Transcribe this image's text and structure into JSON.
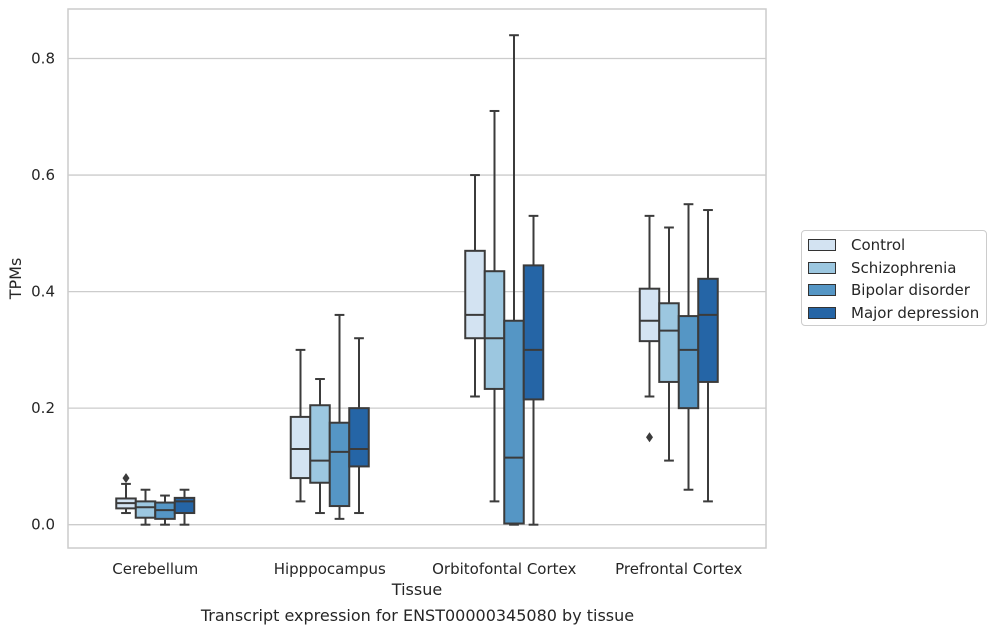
{
  "caption": "Transcript expression for ENST00000345080 by tissue",
  "chart_data": {
    "type": "box",
    "xlabel": "Tissue",
    "ylabel": "TPMs",
    "ylim": [
      -0.04,
      0.885
    ],
    "yticks": [
      0.0,
      0.2,
      0.4,
      0.6,
      0.8
    ],
    "ytick_labels": [
      "0.0",
      "0.2",
      "0.4",
      "0.6",
      "0.8"
    ],
    "grid": "horizontal",
    "legend_position": "right",
    "categories": [
      "Cerebellum",
      "Hipppocampus",
      "Orbitofontal Cortex",
      "Prefrontal Cortex"
    ],
    "series": [
      {
        "name": "Control",
        "color": "#d3e3f2",
        "boxes": [
          {
            "whislo": 0.02,
            "q1": 0.028,
            "med": 0.037,
            "q3": 0.045,
            "whishi": 0.07,
            "fliers": [
              0.08
            ]
          },
          {
            "whislo": 0.04,
            "q1": 0.08,
            "med": 0.13,
            "q3": 0.185,
            "whishi": 0.3,
            "fliers": []
          },
          {
            "whislo": 0.22,
            "q1": 0.32,
            "med": 0.36,
            "q3": 0.47,
            "whishi": 0.6,
            "fliers": []
          },
          {
            "whislo": 0.22,
            "q1": 0.315,
            "med": 0.35,
            "q3": 0.405,
            "whishi": 0.53,
            "fliers": [
              0.15
            ]
          }
        ]
      },
      {
        "name": "Schizophrenia",
        "color": "#9cc7e0",
        "boxes": [
          {
            "whislo": 0.0,
            "q1": 0.012,
            "med": 0.03,
            "q3": 0.04,
            "whishi": 0.06,
            "fliers": []
          },
          {
            "whislo": 0.02,
            "q1": 0.072,
            "med": 0.11,
            "q3": 0.205,
            "whishi": 0.25,
            "fliers": []
          },
          {
            "whislo": 0.04,
            "q1": 0.233,
            "med": 0.32,
            "q3": 0.435,
            "whishi": 0.71,
            "fliers": []
          },
          {
            "whislo": 0.11,
            "q1": 0.245,
            "med": 0.333,
            "q3": 0.38,
            "whishi": 0.51,
            "fliers": []
          }
        ]
      },
      {
        "name": "Bipolar disorder",
        "color": "#5596c5",
        "boxes": [
          {
            "whislo": 0.0,
            "q1": 0.01,
            "med": 0.025,
            "q3": 0.038,
            "whishi": 0.05,
            "fliers": []
          },
          {
            "whislo": 0.01,
            "q1": 0.032,
            "med": 0.125,
            "q3": 0.175,
            "whishi": 0.36,
            "fliers": []
          },
          {
            "whislo": 0.0,
            "q1": 0.002,
            "med": 0.115,
            "q3": 0.35,
            "whishi": 0.84,
            "fliers": []
          },
          {
            "whislo": 0.06,
            "q1": 0.2,
            "med": 0.3,
            "q3": 0.358,
            "whishi": 0.55,
            "fliers": []
          }
        ]
      },
      {
        "name": "Major depression",
        "color": "#2565a6",
        "boxes": [
          {
            "whislo": 0.0,
            "q1": 0.02,
            "med": 0.04,
            "q3": 0.046,
            "whishi": 0.06,
            "fliers": []
          },
          {
            "whislo": 0.02,
            "q1": 0.1,
            "med": 0.13,
            "q3": 0.2,
            "whishi": 0.32,
            "fliers": []
          },
          {
            "whislo": 0.0,
            "q1": 0.215,
            "med": 0.3,
            "q3": 0.445,
            "whishi": 0.53,
            "fliers": []
          },
          {
            "whislo": 0.04,
            "q1": 0.245,
            "med": 0.36,
            "q3": 0.422,
            "whishi": 0.54,
            "fliers": []
          }
        ]
      }
    ]
  }
}
